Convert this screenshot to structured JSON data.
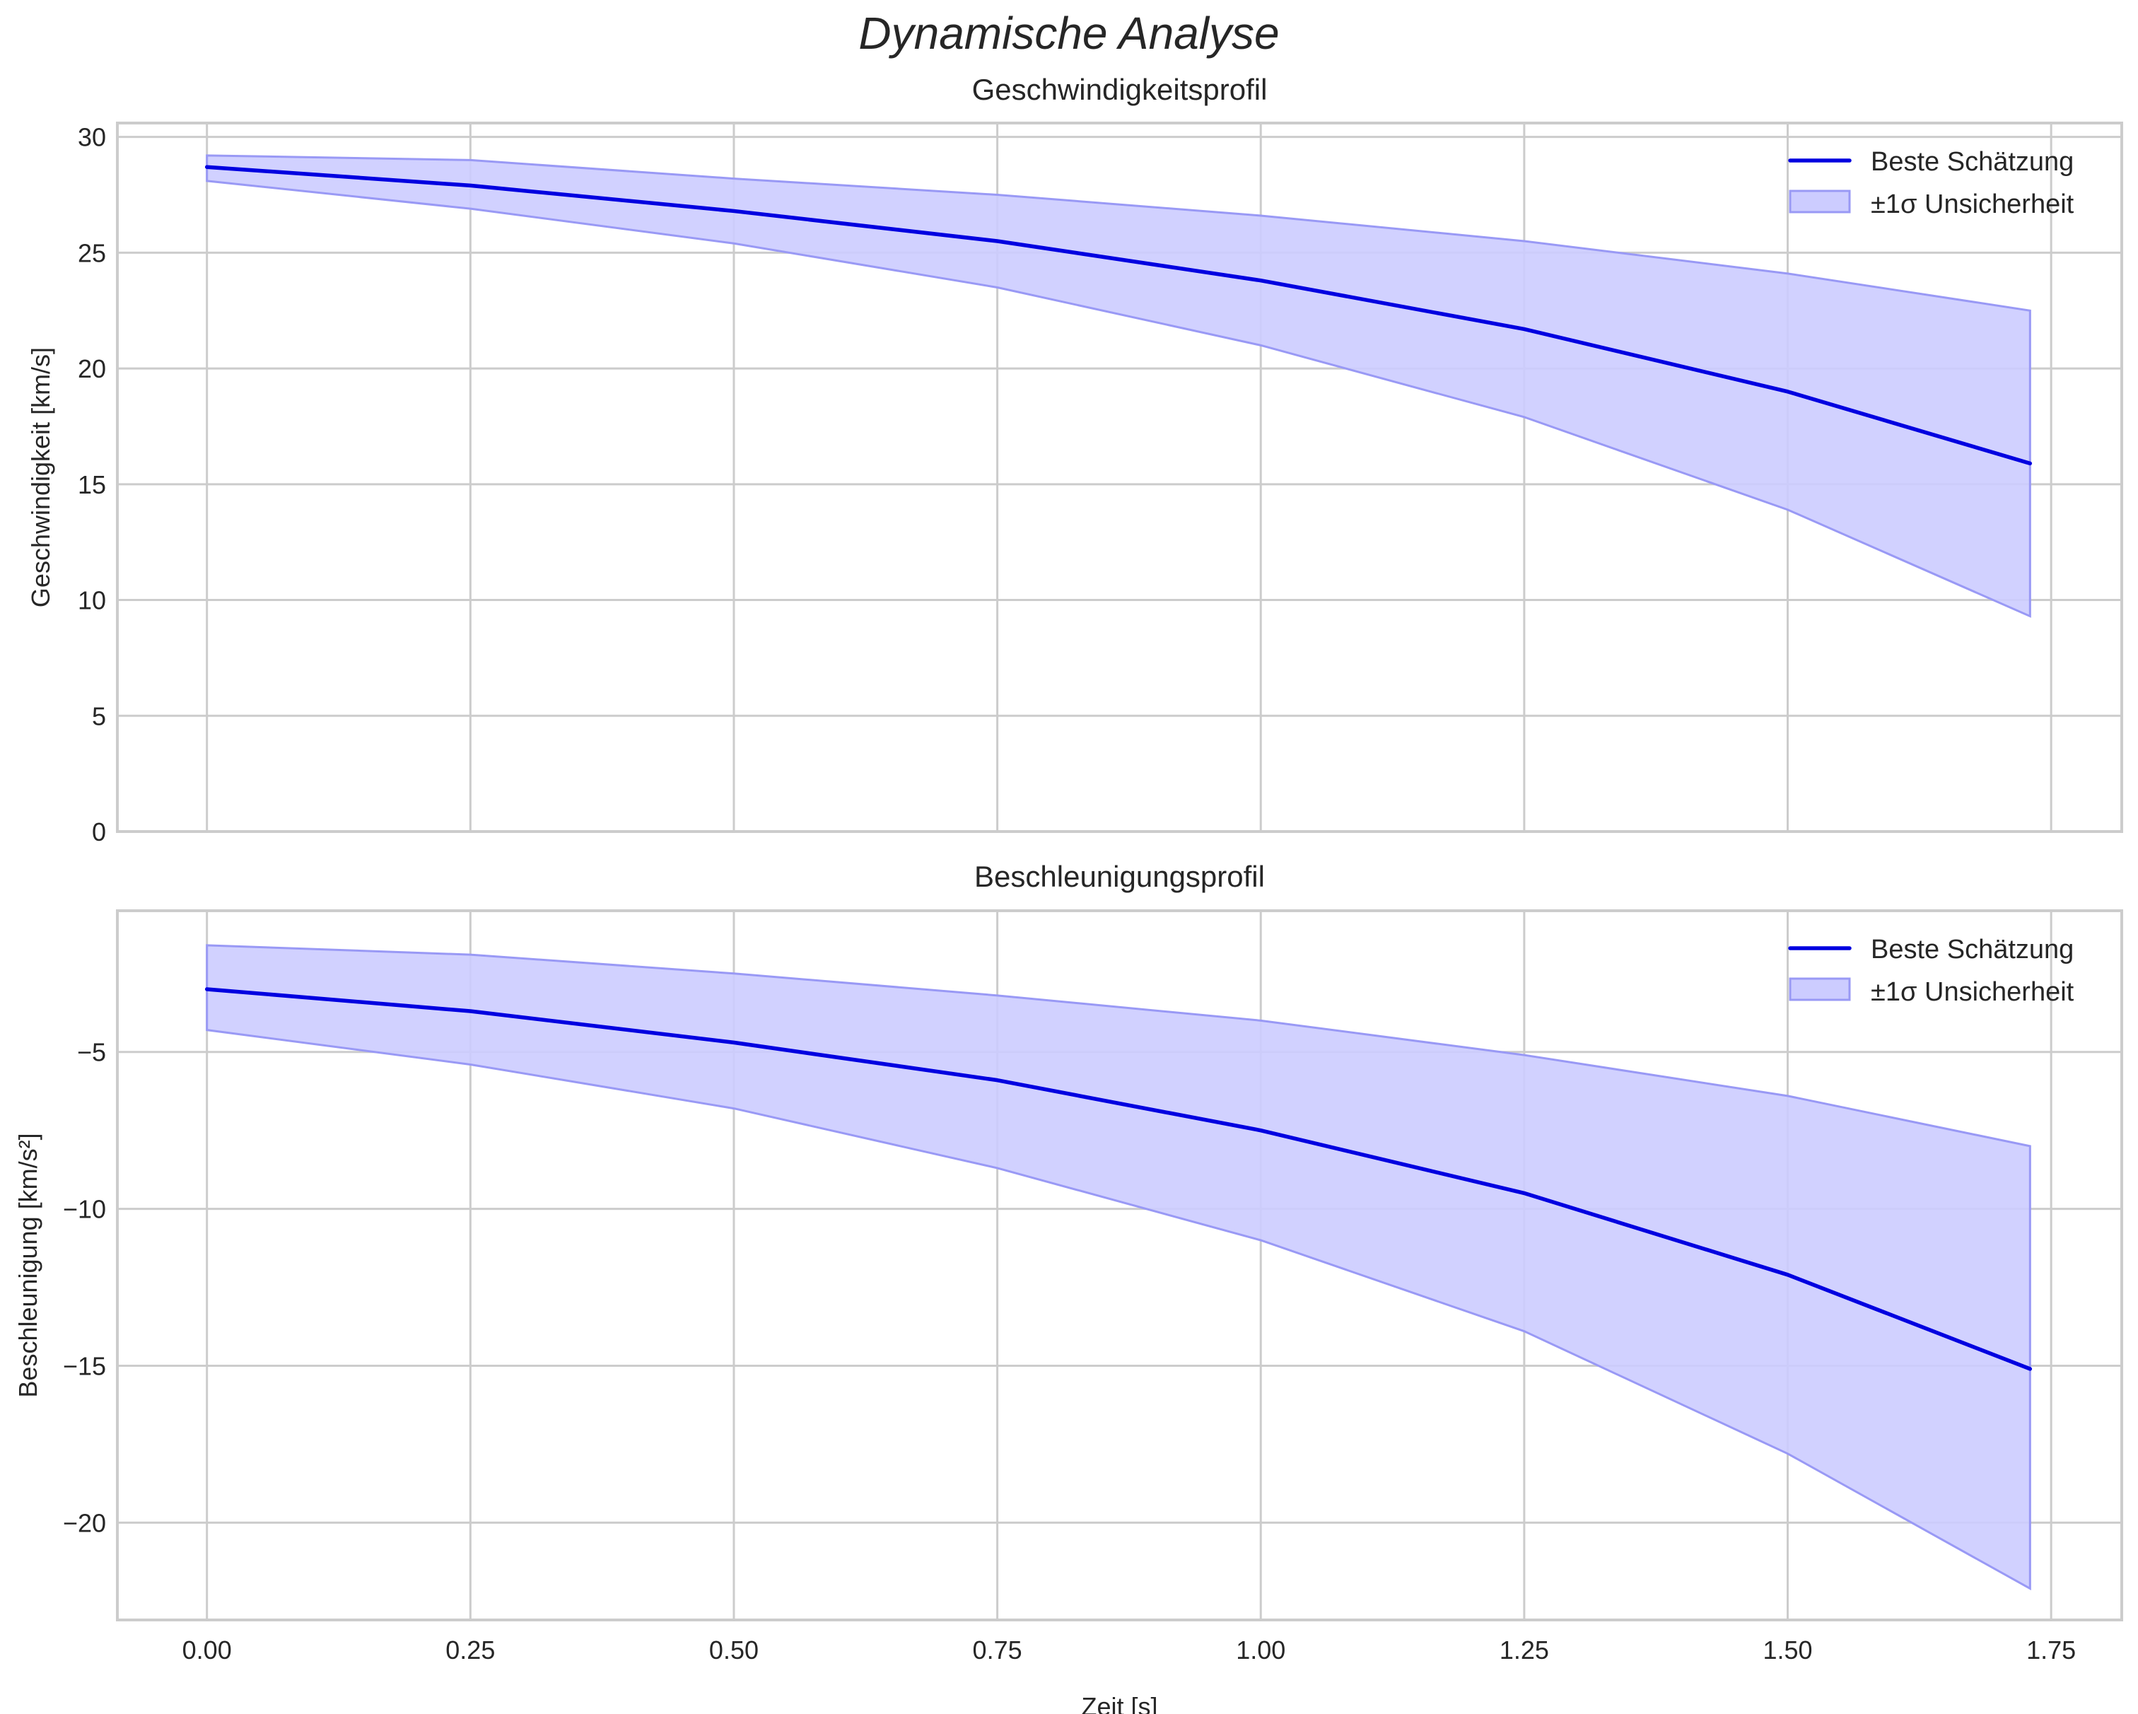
{
  "figure": {
    "title": "Dynamische Analyse"
  },
  "colors": {
    "line": "#0000e0",
    "band_fill": "#ccccff",
    "band_edge": "#9999f5",
    "grid": "#cccccc",
    "spine": "#cccccc",
    "text": "#262626"
  },
  "chart_data": [
    {
      "type": "line",
      "title": "Geschwindigkeitsprofil",
      "xlabel": "",
      "ylabel": "Geschwindigkeit [km/s]",
      "xlim": [
        -0.085,
        1.817
      ],
      "ylim": [
        0,
        30.6
      ],
      "xticks": [
        0.0,
        0.25,
        0.5,
        0.75,
        1.0,
        1.25,
        1.5,
        1.75
      ],
      "xtick_labels_visible": false,
      "yticks": [
        0,
        5,
        10,
        15,
        20,
        25,
        30
      ],
      "ytick_labels": [
        "0",
        "5",
        "10",
        "15",
        "20",
        "25",
        "30"
      ],
      "grid": true,
      "legend": {
        "position": "upper right",
        "entries": [
          "Beste Schätzung",
          "±1σ Unsicherheit"
        ]
      },
      "x": [
        0.0,
        0.25,
        0.5,
        0.75,
        1.0,
        1.25,
        1.5,
        1.73
      ],
      "series": [
        {
          "name": "Beste Schätzung",
          "kind": "line",
          "values": [
            28.7,
            27.9,
            26.8,
            25.5,
            23.8,
            21.7,
            19.0,
            15.9
          ]
        },
        {
          "name": "±1σ Unsicherheit",
          "kind": "band",
          "upper": [
            29.2,
            29.0,
            28.2,
            27.5,
            26.6,
            25.5,
            24.1,
            22.5
          ],
          "lower": [
            28.1,
            26.9,
            25.4,
            23.5,
            21.0,
            17.9,
            13.9,
            9.3
          ]
        }
      ]
    },
    {
      "type": "line",
      "title": "Beschleunigungsprofil",
      "xlabel": "Zeit [s]",
      "ylabel": "Beschleunigung [km/s²]",
      "xlim": [
        -0.085,
        1.817
      ],
      "ylim": [
        -23.1,
        -0.5
      ],
      "xticks": [
        0.0,
        0.25,
        0.5,
        0.75,
        1.0,
        1.25,
        1.5,
        1.75
      ],
      "xtick_labels": [
        "0.00",
        "0.25",
        "0.50",
        "0.75",
        "1.00",
        "1.25",
        "1.50",
        "1.75"
      ],
      "xtick_labels_visible": true,
      "yticks": [
        -5,
        -10,
        -15,
        -20
      ],
      "ytick_labels": [
        "−5",
        "−10",
        "−15",
        "−20"
      ],
      "grid": true,
      "legend": {
        "position": "upper right",
        "entries": [
          "Beste Schätzung",
          "±1σ Unsicherheit"
        ]
      },
      "x": [
        0.0,
        0.25,
        0.5,
        0.75,
        1.0,
        1.25,
        1.5,
        1.73
      ],
      "series": [
        {
          "name": "Beste Schätzung",
          "kind": "line",
          "values": [
            -3.0,
            -3.7,
            -4.7,
            -5.9,
            -7.5,
            -9.5,
            -12.1,
            -15.1
          ]
        },
        {
          "name": "±1σ Unsicherheit",
          "kind": "band",
          "upper": [
            -1.6,
            -1.9,
            -2.5,
            -3.2,
            -4.0,
            -5.1,
            -6.4,
            -8.0
          ],
          "lower": [
            -4.3,
            -5.4,
            -6.8,
            -8.7,
            -11.0,
            -13.9,
            -17.8,
            -22.1
          ]
        }
      ]
    }
  ]
}
